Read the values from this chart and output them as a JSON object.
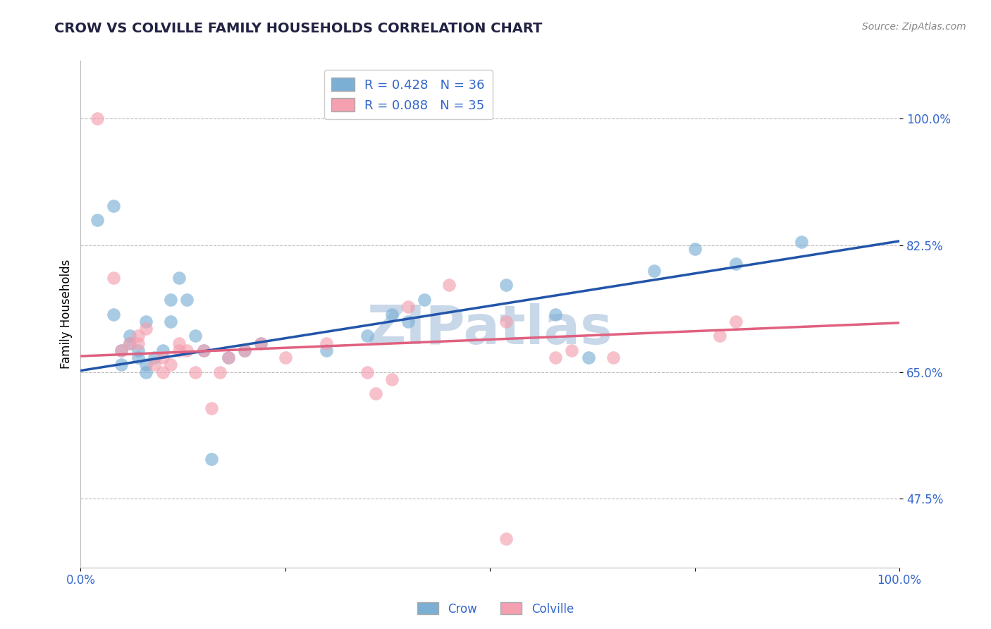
{
  "title": "CROW VS COLVILLE FAMILY HOUSEHOLDS CORRELATION CHART",
  "source_text": "Source: ZipAtlas.com",
  "ylabel": "Family Households",
  "xlim": [
    0.0,
    1.0
  ],
  "ylim": [
    0.38,
    1.08
  ],
  "yticks": [
    0.475,
    0.65,
    0.825,
    1.0
  ],
  "ytick_labels": [
    "47.5%",
    "65.0%",
    "82.5%",
    "100.0%"
  ],
  "xticks": [
    0.0,
    0.25,
    0.5,
    0.75,
    1.0
  ],
  "xtick_labels": [
    "0.0%",
    "",
    "",
    "",
    "100.0%"
  ],
  "crow_R": 0.428,
  "crow_N": 36,
  "colville_R": 0.088,
  "colville_N": 35,
  "crow_color": "#7BAFD4",
  "colville_color": "#F4A0B0",
  "crow_line_color": "#2255AA",
  "colville_line_color": "#E06080",
  "legend_text_color": "#3366CC",
  "title_color": "#222244",
  "source_color": "#888888",
  "watermark_color": "#C8D8E8",
  "crow_x": [
    0.02,
    0.04,
    0.04,
    0.05,
    0.05,
    0.06,
    0.06,
    0.07,
    0.07,
    0.08,
    0.08,
    0.08,
    0.09,
    0.1,
    0.11,
    0.11,
    0.12,
    0.13,
    0.14,
    0.15,
    0.16,
    0.18,
    0.2,
    0.22,
    0.3,
    0.35,
    0.38,
    0.4,
    0.42,
    0.52,
    0.58,
    0.62,
    0.7,
    0.75,
    0.8,
    0.88
  ],
  "crow_y": [
    0.86,
    0.88,
    0.73,
    0.66,
    0.68,
    0.69,
    0.7,
    0.67,
    0.68,
    0.65,
    0.66,
    0.72,
    0.67,
    0.68,
    0.72,
    0.75,
    0.78,
    0.75,
    0.7,
    0.68,
    0.53,
    0.67,
    0.68,
    0.69,
    0.68,
    0.7,
    0.73,
    0.72,
    0.75,
    0.77,
    0.73,
    0.67,
    0.79,
    0.82,
    0.8,
    0.83
  ],
  "colville_x": [
    0.02,
    0.04,
    0.05,
    0.06,
    0.07,
    0.07,
    0.08,
    0.09,
    0.1,
    0.1,
    0.11,
    0.12,
    0.12,
    0.13,
    0.14,
    0.15,
    0.16,
    0.17,
    0.18,
    0.2,
    0.22,
    0.25,
    0.3,
    0.35,
    0.36,
    0.38,
    0.4,
    0.45,
    0.52,
    0.58,
    0.6,
    0.65,
    0.78,
    0.8,
    0.52
  ],
  "colville_y": [
    1.0,
    0.78,
    0.68,
    0.69,
    0.69,
    0.7,
    0.71,
    0.66,
    0.65,
    0.67,
    0.66,
    0.68,
    0.69,
    0.68,
    0.65,
    0.68,
    0.6,
    0.65,
    0.67,
    0.68,
    0.69,
    0.67,
    0.69,
    0.65,
    0.62,
    0.64,
    0.74,
    0.77,
    0.72,
    0.67,
    0.68,
    0.67,
    0.7,
    0.72,
    0.42
  ],
  "background_color": "#FFFFFF",
  "grid_color": "#BBBBBB"
}
